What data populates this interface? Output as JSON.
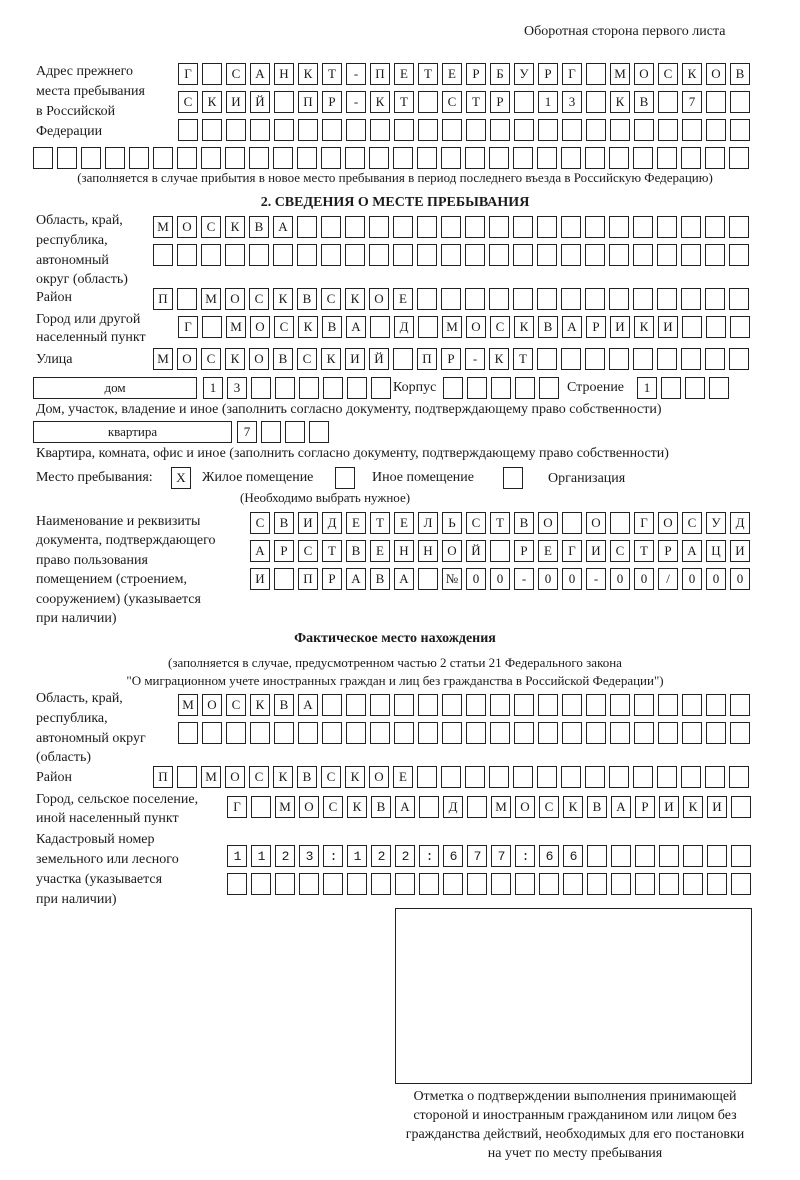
{
  "page_header": "Оборотная сторона первого листа",
  "previous_address": {
    "label": [
      "Адрес прежнего",
      "места пребывания",
      "в Российской",
      "Федерации"
    ],
    "rows": [
      "Г САНКТ-ПЕТЕРБУРГ МОСКОВ",
      "СКИЙ ПР-КТ СТР 13 КВ 7",
      "",
      ""
    ],
    "note": "(заполняется в случае прибытия в новое место пребывания в период последнего въезда в Российскую Федерацию)"
  },
  "section2": {
    "title": "2. СВЕДЕНИЯ О МЕСТЕ ПРЕБЫВАНИЯ",
    "region_label": [
      "Область, край,",
      "республика,",
      "автономный",
      "округ (область)"
    ],
    "region_rows": [
      "МОСКВА",
      ""
    ],
    "district_label": "Район",
    "district": "П МОСКВСКОЕ",
    "city_label": [
      "Город или другой",
      "населенный пункт"
    ],
    "city": "Г МОСКВА Д МОСКВАРИКИ",
    "street_label": "Улица",
    "street": "МОСКОВСКИЙ ПР-КТ",
    "house_type": "дом",
    "house_number": "13",
    "korpus_label": "Корпус",
    "korpus": "",
    "building_label": "Строение",
    "building": "1",
    "house_note": "Дом, участок, владение и иное (заполнить согласно документу, подтверждающему право собственности)",
    "apartment_type": "квартира",
    "apartment_number": "7",
    "apartment_note": "Квартира, комната, офис и иное (заполнить согласно документу, подтверждающему право собственности)",
    "place_label": "Место пребывания:",
    "place_options": [
      {
        "label": "Жилое помещение",
        "mark": "Х",
        "checked": true
      },
      {
        "label": "Иное помещение",
        "mark": "",
        "checked": false
      },
      {
        "label": "Организация",
        "mark": "",
        "checked": false
      }
    ],
    "place_note": "(Необходимо выбрать нужное)",
    "doc_label": [
      "Наименование и реквизиты",
      "документа, подтверждающего",
      "право пользования",
      "помещением (строением,",
      "сооружением) (указывается",
      "при наличии)"
    ],
    "doc_rows": [
      "СВИДЕТЕЛЬСТВО О ГОСУД",
      "АРСТВЕННОЙ РЕГИСТРАЦИ",
      "И ПРАВА №00-00-00/000"
    ]
  },
  "actual": {
    "title": "Фактическое место нахождения",
    "note1": "(заполняется в случае, предусмотренном частью 2 статьи 21 Федерального закона",
    "note2": "\"О миграционном учете иностранных граждан и лиц без гражданства в Российской Федерации\")",
    "region_label": [
      "Область, край,",
      "республика,",
      "автономный округ",
      "(область)"
    ],
    "region_rows": [
      "МОСКВА",
      ""
    ],
    "district_label": "Район",
    "district": "П МОСКВСКОЕ",
    "city_label": [
      "Город, сельское поселение,",
      "иной населенный пункт"
    ],
    "city": "Г МОСКВА Д МОСКВАРИКИ",
    "cadastral_label": [
      "Кадастровый номер",
      "земельного или лесного",
      "участка (указывается",
      "при наличии)"
    ],
    "cadastral_rows": [
      "1123:122:677:66",
      ""
    ]
  },
  "stamp": {
    "caption": [
      "Отметка о подтверждении выполнения принимающей",
      "стороной и иностранным гражданином или лицом без",
      "гражданства действий, необходимых для его постановки",
      "на учет по месту пребывания"
    ]
  }
}
